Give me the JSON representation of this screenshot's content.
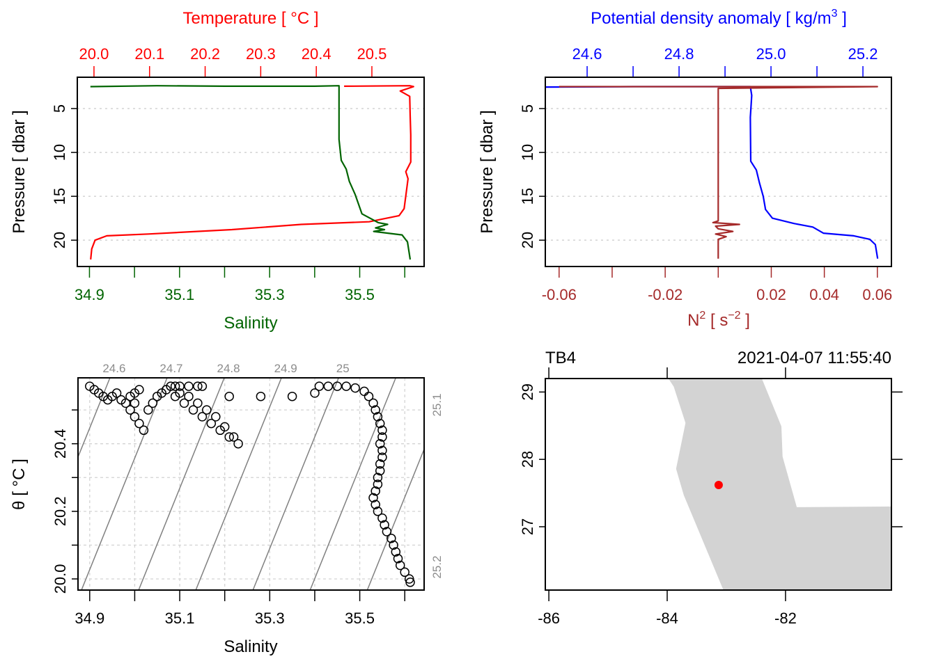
{
  "chart_data": [
    {
      "id": "ts-profile",
      "type": "line",
      "ylabel": "Pressure [ dbar ]",
      "ylim": [
        23.0,
        1.43
      ],
      "y_ticks": [
        5,
        10,
        15,
        20
      ],
      "grid": "horizontal-dotted",
      "top_axis": {
        "title": "Temperature [ °C ]",
        "color": "#ff0000",
        "range": [
          19.97,
          20.594
        ],
        "ticks": [
          20.0,
          20.1,
          20.2,
          20.3,
          20.4,
          20.5
        ],
        "tick_labels": [
          "20.0",
          "20.1",
          "20.2",
          "20.3",
          "20.4",
          "20.5"
        ]
      },
      "bottom_axis": {
        "title": "Salinity",
        "color": "#006400",
        "range": [
          34.873,
          35.643
        ],
        "ticks": [
          34.9,
          35.0,
          35.1,
          35.2,
          35.3,
          35.4,
          35.5,
          35.6
        ],
        "tick_labels": [
          "34.9",
          "",
          "35.1",
          "",
          "35.3",
          "",
          "35.5",
          ""
        ]
      },
      "series": [
        {
          "name": "Temperature",
          "axis": "top",
          "color": "#ff0000",
          "points": [
            [
              20.45,
              2.45
            ],
            [
              20.568,
              2.4
            ],
            [
              20.575,
              2.5
            ],
            [
              20.551,
              3.0
            ],
            [
              20.568,
              3.6
            ],
            [
              20.569,
              5.9
            ],
            [
              20.57,
              8.0
            ],
            [
              20.57,
              11.1
            ],
            [
              20.561,
              12.2
            ],
            [
              20.565,
              13.0
            ],
            [
              20.558,
              16.4
            ],
            [
              20.549,
              17.2
            ],
            [
              20.495,
              17.9
            ],
            [
              20.373,
              18.2
            ],
            [
              20.248,
              18.8
            ],
            [
              20.098,
              19.3
            ],
            [
              20.023,
              19.5
            ],
            [
              20.002,
              20.0
            ],
            [
              19.996,
              21.0
            ],
            [
              19.994,
              22.2
            ]
          ]
        },
        {
          "name": "Salinity",
          "axis": "bottom",
          "color": "#006400",
          "points": [
            [
              34.902,
              2.5
            ],
            [
              35.05,
              2.4
            ],
            [
              35.2,
              2.45
            ],
            [
              35.4,
              2.45
            ],
            [
              35.454,
              2.4
            ],
            [
              35.454,
              3.2
            ],
            [
              35.454,
              8.5
            ],
            [
              35.459,
              10.9
            ],
            [
              35.47,
              11.9
            ],
            [
              35.477,
              13.3
            ],
            [
              35.49,
              14.8
            ],
            [
              35.505,
              17.0
            ],
            [
              35.541,
              18.0
            ],
            [
              35.562,
              18.2
            ],
            [
              35.535,
              18.6
            ],
            [
              35.555,
              18.8
            ],
            [
              35.531,
              19.0
            ],
            [
              35.594,
              19.4
            ],
            [
              35.606,
              20.2
            ],
            [
              35.612,
              22.2
            ]
          ]
        }
      ]
    },
    {
      "id": "density-n2-profile",
      "type": "line",
      "ylabel": "Pressure [ dbar ]",
      "ylim": [
        23.0,
        1.43
      ],
      "y_ticks": [
        5,
        10,
        15,
        20
      ],
      "grid": "horizontal-dotted",
      "top_axis": {
        "title": "Potential density anomaly [ kg/m³ ]",
        "color": "#0000ff",
        "range": [
          24.509,
          25.262
        ],
        "ticks": [
          24.6,
          24.7,
          24.8,
          24.9,
          25.0,
          25.1,
          25.2
        ],
        "tick_labels": [
          "24.6",
          "",
          "24.8",
          "",
          "25.0",
          "",
          "25.2"
        ]
      },
      "bottom_axis": {
        "title": "N² [ s⁻² ]",
        "color": "#a52a2a",
        "range": [
          -0.0652,
          0.0653
        ],
        "ticks": [
          -0.06,
          -0.04,
          -0.02,
          0.0,
          0.02,
          0.04,
          0.06
        ],
        "tick_labels": [
          "-0.06",
          "",
          "-0.02",
          "",
          "0.02",
          "0.04",
          "0.06"
        ]
      },
      "series": [
        {
          "name": "Potential density anomaly",
          "axis": "top",
          "color": "#0000ff",
          "points": [
            [
              24.509,
              2.55
            ],
            [
              24.7,
              2.5
            ],
            [
              24.955,
              2.5
            ],
            [
              24.958,
              3.5
            ],
            [
              24.955,
              6.0
            ],
            [
              24.956,
              11.0
            ],
            [
              24.968,
              12.0
            ],
            [
              24.975,
              13.5
            ],
            [
              24.983,
              15.0
            ],
            [
              24.988,
              16.5
            ],
            [
              25.003,
              17.5
            ],
            [
              25.05,
              18.1
            ],
            [
              25.091,
              18.5
            ],
            [
              25.114,
              19.2
            ],
            [
              25.18,
              19.5
            ],
            [
              25.215,
              19.9
            ],
            [
              25.227,
              20.5
            ],
            [
              25.232,
              22.1
            ]
          ]
        },
        {
          "name": "N2",
          "axis": "bottom",
          "color": "#a52a2a",
          "points": [
            [
              -0.06,
              2.5
            ],
            [
              0.06,
              2.5
            ],
            [
              0.0,
              2.7
            ],
            [
              0.0,
              3.0
            ],
            [
              0.0,
              17.8
            ],
            [
              -0.002,
              18.0
            ],
            [
              0.008,
              18.2
            ],
            [
              -0.001,
              18.4
            ],
            [
              0.0,
              18.7
            ],
            [
              0.0055,
              19.0
            ],
            [
              -0.001,
              19.3
            ],
            [
              0.003,
              19.6
            ],
            [
              0.0,
              19.9
            ],
            [
              0.0,
              22.1
            ]
          ]
        }
      ]
    },
    {
      "id": "ts-diagram",
      "type": "scatter",
      "xlabel": "Salinity",
      "ylabel": "θ [ °C ]",
      "xlim": [
        34.874,
        35.643
      ],
      "ylim": [
        19.967,
        20.595
      ],
      "x_ticks": [
        34.9,
        35.0,
        35.1,
        35.2,
        35.3,
        35.4,
        35.5,
        35.6
      ],
      "x_tick_labels": [
        "34.9",
        "",
        "35.1",
        "",
        "35.3",
        "",
        "35.5",
        ""
      ],
      "y_ticks": [
        20.0,
        20.1,
        20.2,
        20.3,
        20.4,
        20.5
      ],
      "y_tick_labels": [
        "20.0",
        "",
        "20.2",
        "",
        "20.4",
        ""
      ],
      "grid": "dashed",
      "isopycnals": {
        "color": "#808080",
        "top_labels": [
          "24.6",
          "24.7",
          "24.8",
          "24.9",
          "25"
        ],
        "right_labels": [
          "25.1",
          "25.2"
        ]
      },
      "points": [
        [
          34.9,
          20.57
        ],
        [
          34.91,
          20.56
        ],
        [
          34.92,
          20.55
        ],
        [
          34.93,
          20.54
        ],
        [
          34.94,
          20.53
        ],
        [
          34.95,
          20.54
        ],
        [
          34.96,
          20.55
        ],
        [
          34.97,
          20.53
        ],
        [
          34.98,
          20.52
        ],
        [
          34.99,
          20.54
        ],
        [
          35.0,
          20.55
        ],
        [
          35.01,
          20.56
        ],
        [
          35.0,
          20.52
        ],
        [
          34.99,
          20.5
        ],
        [
          35.0,
          20.48
        ],
        [
          35.01,
          20.46
        ],
        [
          35.02,
          20.44
        ],
        [
          35.03,
          20.5
        ],
        [
          35.04,
          20.52
        ],
        [
          35.05,
          20.54
        ],
        [
          35.06,
          20.55
        ],
        [
          35.07,
          20.56
        ],
        [
          35.08,
          20.57
        ],
        [
          35.09,
          20.57
        ],
        [
          35.1,
          20.57
        ],
        [
          35.12,
          20.57
        ],
        [
          35.14,
          20.57
        ],
        [
          35.15,
          20.57
        ],
        [
          35.09,
          20.54
        ],
        [
          35.11,
          20.52
        ],
        [
          35.13,
          20.5
        ],
        [
          35.15,
          20.48
        ],
        [
          35.17,
          20.46
        ],
        [
          35.19,
          20.44
        ],
        [
          35.21,
          20.42
        ],
        [
          35.23,
          20.4
        ],
        [
          35.1,
          20.55
        ],
        [
          35.12,
          20.54
        ],
        [
          35.14,
          20.52
        ],
        [
          35.16,
          20.5
        ],
        [
          35.18,
          20.48
        ],
        [
          35.2,
          20.45
        ],
        [
          35.22,
          20.42
        ],
        [
          35.21,
          20.54
        ],
        [
          35.28,
          20.54
        ],
        [
          35.35,
          20.54
        ],
        [
          35.4,
          20.55
        ],
        [
          35.41,
          20.57
        ],
        [
          35.43,
          20.57
        ],
        [
          35.45,
          20.57
        ],
        [
          35.47,
          20.57
        ],
        [
          35.49,
          20.565
        ],
        [
          35.51,
          20.555
        ],
        [
          35.52,
          20.54
        ],
        [
          35.53,
          20.52
        ],
        [
          35.535,
          20.5
        ],
        [
          35.54,
          20.48
        ],
        [
          35.545,
          20.46
        ],
        [
          35.55,
          20.44
        ],
        [
          35.55,
          20.42
        ],
        [
          35.545,
          20.4
        ],
        [
          35.55,
          20.38
        ],
        [
          35.55,
          20.36
        ],
        [
          35.545,
          20.34
        ],
        [
          35.545,
          20.32
        ],
        [
          35.54,
          20.3
        ],
        [
          35.54,
          20.28
        ],
        [
          35.535,
          20.26
        ],
        [
          35.53,
          20.24
        ],
        [
          35.535,
          20.22
        ],
        [
          35.54,
          20.2
        ],
        [
          35.55,
          20.18
        ],
        [
          35.555,
          20.16
        ],
        [
          35.56,
          20.14
        ],
        [
          35.57,
          20.12
        ],
        [
          35.575,
          20.1
        ],
        [
          35.58,
          20.08
        ],
        [
          35.585,
          20.06
        ],
        [
          35.59,
          20.04
        ],
        [
          35.6,
          20.02
        ],
        [
          35.61,
          20.0
        ],
        [
          35.612,
          19.99
        ]
      ]
    },
    {
      "id": "station-map",
      "type": "scatter",
      "station": "TB4",
      "datetime": "2021-04-07 11:55:40",
      "xlim": [
        -86.06,
        -80.21
      ],
      "ylim": [
        26.06,
        29.2
      ],
      "x_ticks": [
        -86,
        -84,
        -82
      ],
      "x_tick_labels": [
        "-86",
        "-84",
        "-82"
      ],
      "y_ticks": [
        27,
        28,
        29
      ],
      "y_tick_labels": [
        "27",
        "28",
        "29"
      ],
      "land_color": "#d3d3d3",
      "station_color": "#ff0000",
      "station_position": {
        "lon": -83.13,
        "lat": 27.62
      },
      "land_polygon": [
        [
          -83.98,
          29.2
        ],
        [
          -83.89,
          29.08
        ],
        [
          -83.69,
          28.54
        ],
        [
          -83.85,
          27.86
        ],
        [
          -83.72,
          27.47
        ],
        [
          -83.05,
          26.06
        ],
        [
          -80.21,
          26.06
        ],
        [
          -80.21,
          27.3
        ],
        [
          -81.81,
          27.29
        ],
        [
          -82.05,
          28.04
        ],
        [
          -82.07,
          28.49
        ],
        [
          -82.4,
          29.2
        ]
      ]
    }
  ]
}
